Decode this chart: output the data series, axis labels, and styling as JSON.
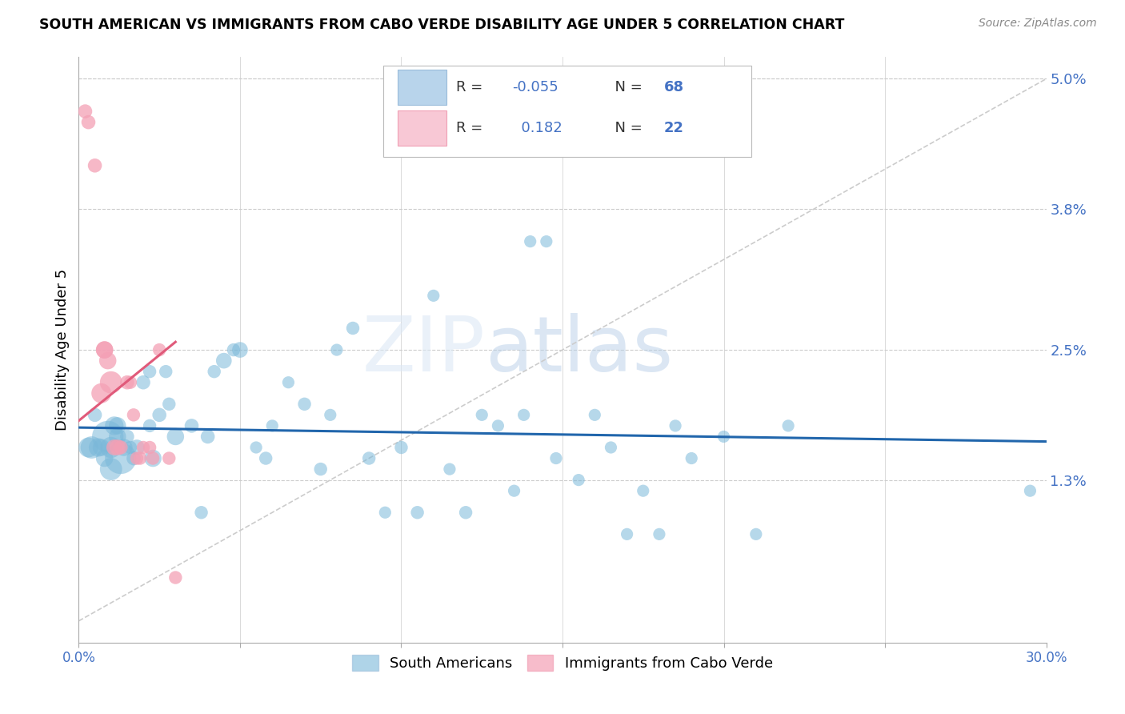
{
  "title": "SOUTH AMERICAN VS IMMIGRANTS FROM CABO VERDE DISABILITY AGE UNDER 5 CORRELATION CHART",
  "source": "Source: ZipAtlas.com",
  "ylabel": "Disability Age Under 5",
  "xlim": [
    0.0,
    0.3
  ],
  "ylim": [
    -0.002,
    0.052
  ],
  "right_yticks": [
    0.013,
    0.025,
    0.038,
    0.05
  ],
  "right_ytick_labels": [
    "1.3%",
    "2.5%",
    "3.8%",
    "5.0%"
  ],
  "r_blue": -0.055,
  "n_blue": 68,
  "r_pink": 0.182,
  "n_pink": 22,
  "blue_color": "#7ab8d9",
  "pink_color": "#f4a0b5",
  "blue_line_color": "#2166ac",
  "pink_line_color": "#e05a7a",
  "diag_color": "#cccccc",
  "legend_label_blue": "South Americans",
  "legend_label_pink": "Immigrants from Cabo Verde",
  "watermark": "ZIPatlas",
  "blue_x": [
    0.003,
    0.004,
    0.005,
    0.006,
    0.007,
    0.008,
    0.009,
    0.01,
    0.01,
    0.011,
    0.012,
    0.012,
    0.013,
    0.014,
    0.015,
    0.016,
    0.017,
    0.018,
    0.02,
    0.022,
    0.022,
    0.023,
    0.025,
    0.027,
    0.028,
    0.03,
    0.035,
    0.038,
    0.04,
    0.042,
    0.045,
    0.048,
    0.05,
    0.055,
    0.058,
    0.06,
    0.065,
    0.07,
    0.075,
    0.078,
    0.08,
    0.085,
    0.09,
    0.095,
    0.1,
    0.105,
    0.11,
    0.115,
    0.12,
    0.125,
    0.13,
    0.135,
    0.138,
    0.14,
    0.145,
    0.148,
    0.155,
    0.16,
    0.165,
    0.17,
    0.175,
    0.18,
    0.185,
    0.19,
    0.2,
    0.21,
    0.22,
    0.295
  ],
  "blue_y": [
    0.016,
    0.016,
    0.019,
    0.016,
    0.016,
    0.015,
    0.017,
    0.016,
    0.014,
    0.018,
    0.018,
    0.017,
    0.015,
    0.016,
    0.017,
    0.016,
    0.015,
    0.016,
    0.022,
    0.023,
    0.018,
    0.015,
    0.019,
    0.023,
    0.02,
    0.017,
    0.018,
    0.01,
    0.017,
    0.023,
    0.024,
    0.025,
    0.025,
    0.016,
    0.015,
    0.018,
    0.022,
    0.02,
    0.014,
    0.019,
    0.025,
    0.027,
    0.015,
    0.01,
    0.016,
    0.01,
    0.03,
    0.014,
    0.01,
    0.019,
    0.018,
    0.012,
    0.019,
    0.035,
    0.035,
    0.015,
    0.013,
    0.019,
    0.016,
    0.008,
    0.012,
    0.008,
    0.018,
    0.015,
    0.017,
    0.008,
    0.018,
    0.012
  ],
  "blue_size": [
    80,
    100,
    40,
    70,
    60,
    60,
    200,
    90,
    100,
    70,
    60,
    60,
    200,
    60,
    40,
    35,
    40,
    50,
    40,
    35,
    35,
    60,
    40,
    35,
    35,
    60,
    40,
    35,
    40,
    35,
    50,
    35,
    50,
    30,
    35,
    30,
    30,
    35,
    35,
    30,
    30,
    35,
    35,
    30,
    35,
    35,
    30,
    30,
    35,
    30,
    30,
    30,
    30,
    30,
    30,
    30,
    30,
    30,
    30,
    30,
    30,
    30,
    30,
    30,
    30,
    30,
    30,
    30
  ],
  "pink_x": [
    0.002,
    0.003,
    0.005,
    0.007,
    0.008,
    0.008,
    0.009,
    0.01,
    0.011,
    0.012,
    0.013,
    0.015,
    0.016,
    0.017,
    0.018,
    0.019,
    0.02,
    0.022,
    0.023,
    0.025,
    0.028,
    0.03
  ],
  "pink_y": [
    0.047,
    0.046,
    0.042,
    0.021,
    0.025,
    0.025,
    0.024,
    0.022,
    0.016,
    0.016,
    0.016,
    0.022,
    0.022,
    0.019,
    0.015,
    0.015,
    0.016,
    0.016,
    0.015,
    0.025,
    0.015,
    0.004
  ],
  "pink_size": [
    40,
    40,
    40,
    80,
    60,
    60,
    60,
    100,
    50,
    50,
    40,
    40,
    35,
    35,
    35,
    35,
    35,
    35,
    35,
    35,
    35,
    35
  ]
}
